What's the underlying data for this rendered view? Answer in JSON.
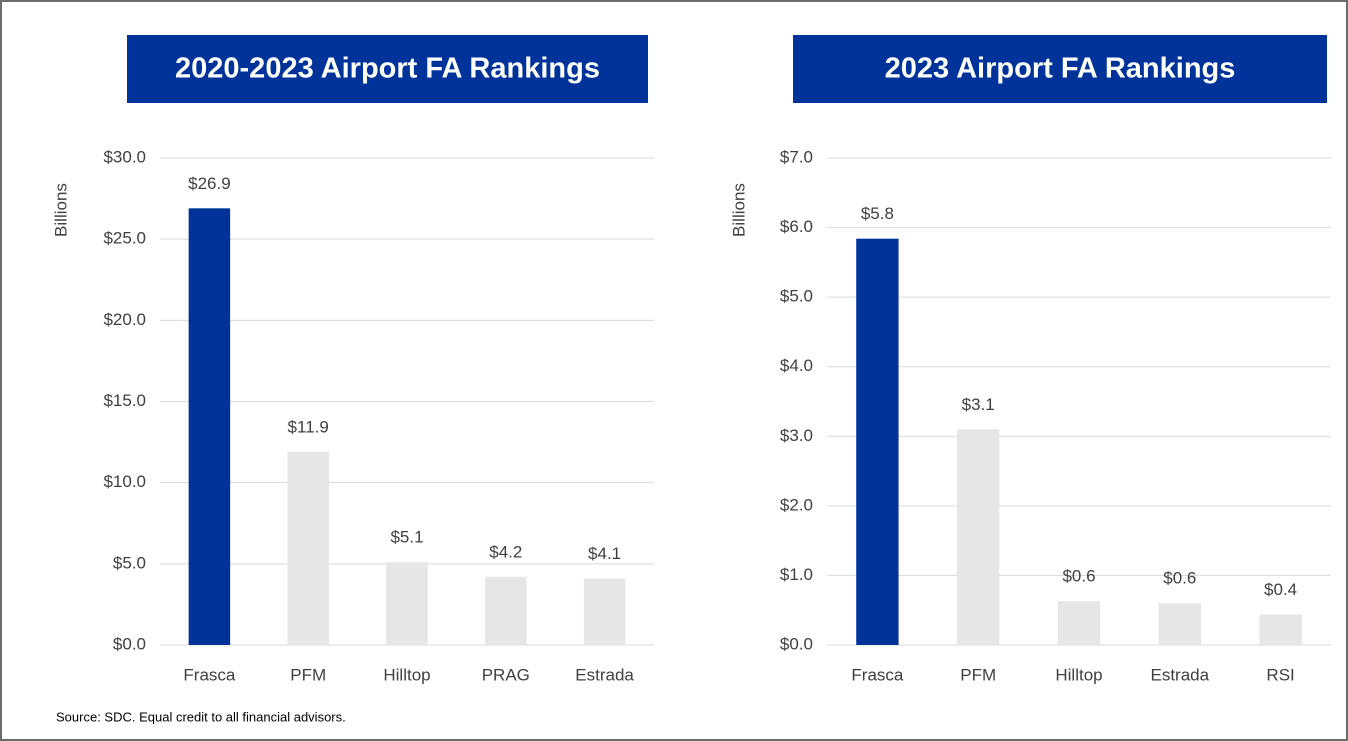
{
  "chart_data": [
    {
      "type": "bar",
      "title": "2020-2023 Airport FA Rankings",
      "ylabel": "Billions",
      "categories": [
        "Frasca",
        "PFM",
        "Hilltop",
        "PRAG",
        "Estrada"
      ],
      "values": [
        26.9,
        11.9,
        5.1,
        4.2,
        4.1
      ],
      "value_labels": [
        "$26.9",
        "$11.9",
        "$5.1",
        "$4.2",
        "$4.1"
      ],
      "colors": [
        "#00339a",
        "#e6e6e6",
        "#e6e6e6",
        "#e6e6e6",
        "#e6e6e6"
      ],
      "ylim": [
        0,
        30
      ],
      "yticks": [
        {
          "value": 0,
          "label": "$0.0"
        },
        {
          "value": 5,
          "label": "$5.0"
        },
        {
          "value": 10,
          "label": "$10.0"
        },
        {
          "value": 15,
          "label": "$15.0"
        },
        {
          "value": 20,
          "label": "$20.0"
        },
        {
          "value": 25,
          "label": "$25.0"
        },
        {
          "value": 30,
          "label": "$30.0"
        }
      ],
      "grid": true
    },
    {
      "type": "bar",
      "title": "2023 Airport FA Rankings",
      "ylabel": "Billions",
      "categories": [
        "Frasca",
        "PFM",
        "Hilltop",
        "Estrada",
        "RSI"
      ],
      "values": [
        5.84,
        3.1,
        0.63,
        0.6,
        0.44
      ],
      "value_labels": [
        "$5.8",
        "$3.1",
        "$0.6",
        "$0.6",
        "$0.4"
      ],
      "colors": [
        "#00339a",
        "#e6e6e6",
        "#e6e6e6",
        "#e6e6e6",
        "#e6e6e6"
      ],
      "ylim": [
        0,
        7
      ],
      "yticks": [
        {
          "value": 0,
          "label": "$0.0"
        },
        {
          "value": 1,
          "label": "$1.0"
        },
        {
          "value": 2,
          "label": "$2.0"
        },
        {
          "value": 3,
          "label": "$3.0"
        },
        {
          "value": 4,
          "label": "$4.0"
        },
        {
          "value": 5,
          "label": "$5.0"
        },
        {
          "value": 6,
          "label": "$6.0"
        },
        {
          "value": 7,
          "label": "$7.0"
        }
      ],
      "grid": true
    }
  ],
  "source": "Source: SDC.  Equal credit to all financial advisors."
}
